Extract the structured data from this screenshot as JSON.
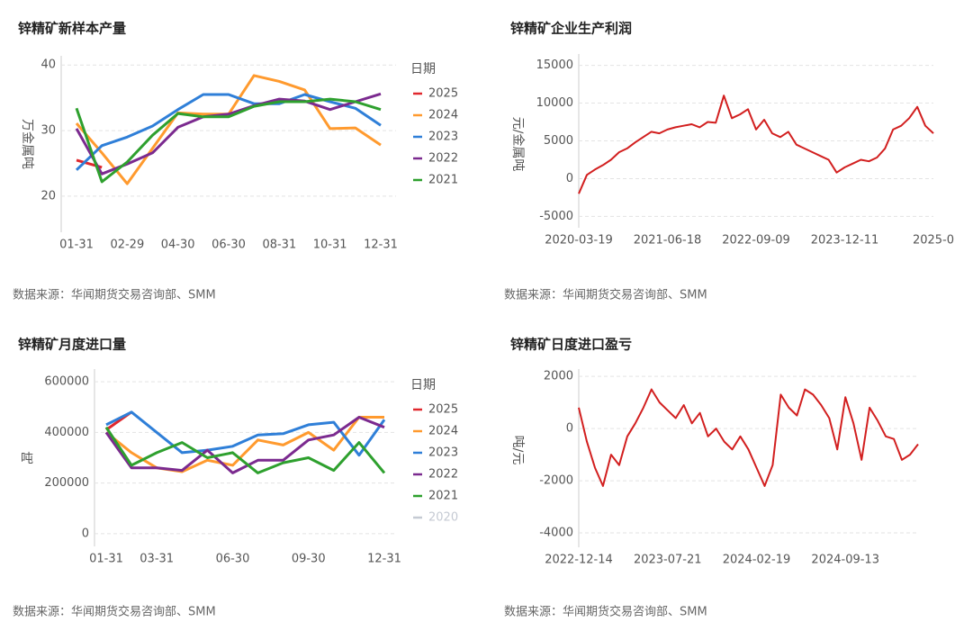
{
  "chart_data": [
    {
      "type": "line",
      "title": "锌精矿新样本产量",
      "ylabel": "万金属吨",
      "source": "数据来源：华闻期货交易咨询部、SMM",
      "legend_title": "日期",
      "categories": [
        "01-31",
        null,
        "02-29",
        null,
        "04-30",
        null,
        "06-30",
        null,
        "08-31",
        null,
        "10-31",
        null,
        "12-31"
      ],
      "ylim": [
        14.5,
        41.4
      ],
      "yticks": [
        20,
        30,
        40
      ],
      "grid": true,
      "series": [
        {
          "name": "2025",
          "color": "#e0282e",
          "values": [
            25.5,
            24.4,
            null,
            null,
            null,
            null,
            null,
            null,
            null,
            null,
            null,
            null,
            null
          ]
        },
        {
          "name": "2024",
          "color": "#ff9a2e",
          "values": [
            31.1,
            26.6,
            21.9,
            27.3,
            32.7,
            32.5,
            32.5,
            38.4,
            37.5,
            36.2,
            30.3,
            30.4,
            27.8
          ]
        },
        {
          "name": "2023",
          "color": "#2f7fd8",
          "values": [
            24.0,
            27.7,
            29.0,
            30.7,
            33.2,
            35.5,
            35.5,
            34.1,
            34.1,
            35.5,
            34.4,
            33.4,
            30.8
          ]
        },
        {
          "name": "2022",
          "color": "#7b2a8f",
          "values": [
            30.3,
            23.4,
            24.9,
            26.6,
            30.5,
            32.1,
            32.5,
            33.8,
            34.8,
            34.5,
            33.2,
            34.4,
            35.6
          ]
        },
        {
          "name": "2021",
          "color": "#2ea02e",
          "values": [
            33.4,
            22.2,
            25.2,
            29.3,
            32.6,
            32.1,
            32.1,
            33.7,
            34.4,
            34.4,
            34.8,
            34.4,
            33.2
          ]
        }
      ]
    },
    {
      "type": "line",
      "title": "锌精矿企业生产利润",
      "ylabel": "元/金属吨",
      "source": "数据来源：华闻期货交易咨询部、SMM",
      "categories": [
        "2020-03-19",
        null,
        null,
        null,
        null,
        null,
        null,
        null,
        null,
        null,
        null,
        "2021-06-18",
        null,
        null,
        null,
        null,
        null,
        null,
        null,
        null,
        null,
        null,
        "2022-09-09",
        null,
        null,
        null,
        null,
        null,
        null,
        null,
        null,
        null,
        null,
        "2023-12-11",
        null,
        null,
        null,
        null,
        null,
        null,
        null,
        null,
        null,
        null,
        "2025-0"
      ],
      "ylim": [
        -6500,
        16500
      ],
      "yticks": [
        -5000,
        0,
        5000,
        10000,
        15000
      ],
      "grid": true,
      "series": [
        {
          "name": "利润",
          "color": "#d21f1f",
          "values": [
            -2000,
            500,
            1200,
            1800,
            2500,
            3500,
            4000,
            4800,
            5500,
            6200,
            6000,
            6500,
            6800,
            7000,
            7200,
            6800,
            7500,
            7400,
            11000,
            8000,
            8500,
            9200,
            6500,
            7800,
            6000,
            5500,
            6200,
            4500,
            4000,
            3500,
            3000,
            2500,
            800,
            1500,
            2000,
            2500,
            2300,
            2800,
            4000,
            6500,
            7000,
            8000,
            9500,
            7000,
            6000
          ]
        }
      ]
    },
    {
      "type": "line",
      "title": "锌精矿月度进口量",
      "ylabel": "吨",
      "source": "数据来源：华闻期货交易咨询部、SMM",
      "legend_title": "日期",
      "categories": [
        "01-31",
        null,
        "03-31",
        null,
        null,
        "06-30",
        null,
        null,
        "09-30",
        null,
        null,
        "12-31"
      ],
      "ylim": [
        -50000,
        650000
      ],
      "yticks": [
        0,
        200000,
        400000,
        600000
      ],
      "grid": true,
      "series": [
        {
          "name": "2025",
          "color": "#e0282e",
          "values": [
            410000,
            480000,
            null,
            null,
            null,
            null,
            null,
            null,
            null,
            null,
            null,
            null
          ]
        },
        {
          "name": "2024",
          "color": "#ff9a2e",
          "values": [
            400000,
            320000,
            260000,
            245000,
            290000,
            270000,
            370000,
            350000,
            400000,
            330000,
            460000,
            460000
          ]
        },
        {
          "name": "2023",
          "color": "#2f7fd8",
          "values": [
            430000,
            480000,
            400000,
            320000,
            330000,
            345000,
            390000,
            395000,
            430000,
            440000,
            310000,
            450000
          ]
        },
        {
          "name": "2022",
          "color": "#7b2a8f",
          "values": [
            400000,
            260000,
            260000,
            250000,
            330000,
            240000,
            290000,
            290000,
            370000,
            390000,
            460000,
            420000
          ]
        },
        {
          "name": "2021",
          "color": "#2ea02e",
          "values": [
            420000,
            270000,
            320000,
            360000,
            300000,
            320000,
            240000,
            280000,
            300000,
            250000,
            360000,
            240000
          ]
        }
      ],
      "legend_inactive": [
        {
          "name": "2020",
          "color": "#c5cad3"
        }
      ]
    },
    {
      "type": "line",
      "title": "锌精矿日度进口盈亏",
      "ylabel": "吨/元",
      "source": "数据来源：华闻期货交易咨询部、SMM",
      "categories": [
        "2022-12-14",
        null,
        null,
        null,
        null,
        null,
        null,
        null,
        null,
        null,
        null,
        "2023-07-21",
        null,
        null,
        null,
        null,
        null,
        null,
        null,
        null,
        null,
        null,
        "2024-02-19",
        null,
        null,
        null,
        null,
        null,
        null,
        null,
        null,
        null,
        null,
        "2024-09-13",
        null,
        null,
        null,
        null,
        null,
        null,
        null,
        null,
        null
      ],
      "ylim": [
        -4550,
        2280
      ],
      "yticks": [
        -4000,
        -2000,
        0,
        2000
      ],
      "grid": true,
      "series": [
        {
          "name": "盈亏",
          "color": "#d21f1f",
          "values": [
            800,
            -500,
            -1500,
            -2200,
            -1000,
            -1400,
            -300,
            200,
            800,
            1500,
            1000,
            700,
            400,
            900,
            200,
            600,
            -300,
            0,
            -500,
            -800,
            -300,
            -800,
            -1500,
            -2200,
            -1400,
            1300,
            800,
            500,
            1500,
            1300,
            900,
            400,
            -800,
            1200,
            200,
            -1200,
            800,
            300,
            -300,
            -400,
            -1200,
            -1000,
            -600
          ]
        }
      ]
    }
  ]
}
